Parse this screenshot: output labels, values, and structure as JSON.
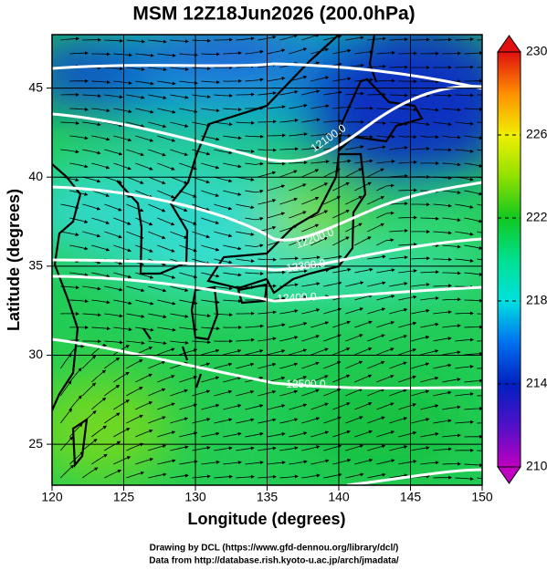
{
  "chart_data": {
    "type": "map",
    "title": "MSM 12Z18Jun2026 (200.0hPa)",
    "x_label": "Longitude (degrees)",
    "y_label": "Latitude  (degrees)",
    "xlim": [
      120,
      150
    ],
    "ylim": [
      22.7,
      48.0
    ],
    "xticks": [
      120,
      125,
      130,
      135,
      140,
      145,
      150
    ],
    "yticks": [
      25,
      30,
      35,
      40,
      45
    ],
    "grid": true,
    "contour_labels": [
      "12100.0",
      "12200.0",
      "12300.0",
      "12400.0",
      "12500.0"
    ],
    "colorbar": {
      "lim": [
        210,
        230
      ],
      "ticks": [
        210,
        214,
        218,
        222,
        226,
        230
      ],
      "colors": [
        "#c000c0",
        "#5010c8",
        "#0020c0",
        "#0070f0",
        "#00e0e0",
        "#00e090",
        "#10c820",
        "#90e000",
        "#f0f000",
        "#ff9000",
        "#e01010"
      ]
    },
    "credits": [
      "Drawing by DCL (https://www.gfd-dennou.org/library/dcl/)",
      "Data from http://database.rish.kyoto-u.ac.jp/arch/jmadata/"
    ]
  }
}
